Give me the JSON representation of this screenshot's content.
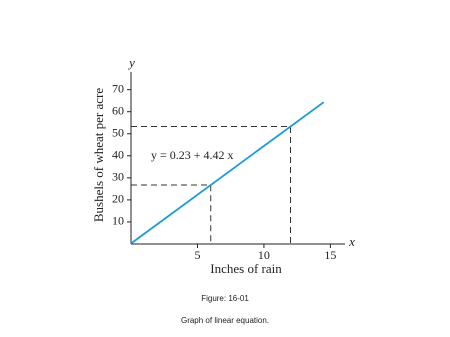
{
  "chart_data": {
    "type": "line",
    "x_label": "Inches of rain",
    "y_label": "Bushels of wheat per acre",
    "x_axis_letter": "x",
    "y_axis_letter": "y",
    "equation": "y = 0.23 + 4.42 x",
    "xlim": [
      0,
      16.1
    ],
    "ylim": [
      0,
      78
    ],
    "xticks": [
      5,
      10,
      15
    ],
    "yticks": [
      10,
      20,
      30,
      40,
      50,
      60,
      70
    ],
    "series": [
      {
        "color": "#1a9ad6",
        "x": [
          0,
          14.5
        ],
        "values": [
          0.23,
          64.32
        ]
      }
    ],
    "guides": {
      "x": [
        6,
        12
      ],
      "values": [
        26.75,
        53.27
      ]
    },
    "figure_label": "Figure: 16-01",
    "caption": "Graph of linear equation."
  }
}
